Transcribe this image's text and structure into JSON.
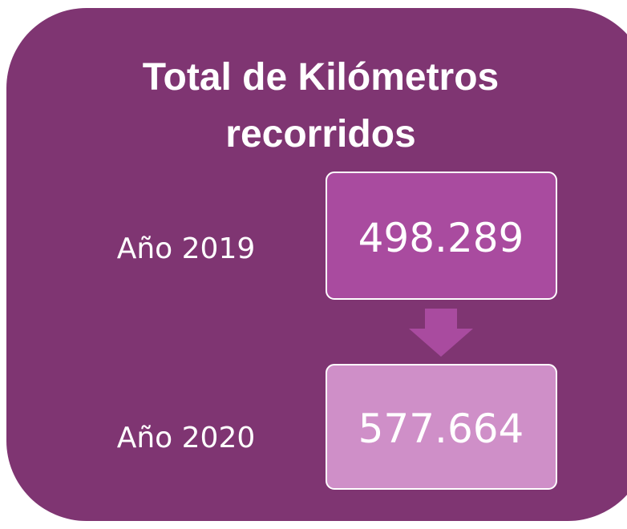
{
  "header": {
    "title": "Total de Kilómetros recorridos"
  },
  "rows": [
    {
      "label": "Año 2019",
      "value": "498.289"
    },
    {
      "label": "Año 2020",
      "value": "577.664"
    }
  ]
}
